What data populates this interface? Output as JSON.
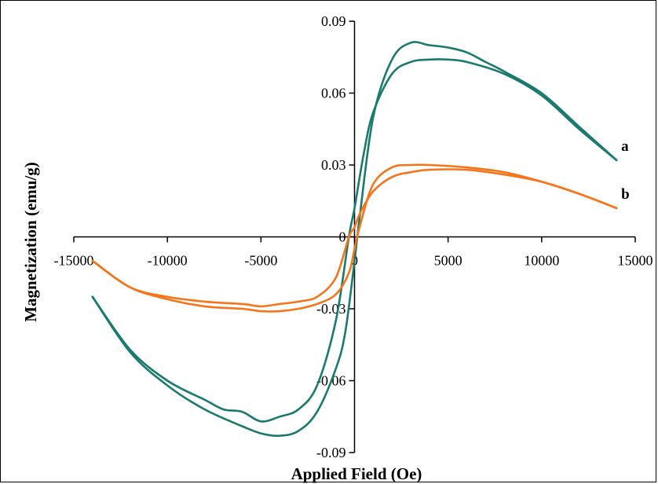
{
  "chart_data": {
    "type": "line",
    "xlabel": "Applied Field (Oe)",
    "ylabel": "Magnetization  (emu/g)",
    "xlim": [
      -15000,
      15000
    ],
    "ylim": [
      -0.09,
      0.09
    ],
    "x_ticks": [
      -15000,
      -10000,
      -5000,
      0,
      5000,
      10000,
      15000
    ],
    "x_tick_labels": [
      "-15000",
      "-10000",
      "-5000",
      "0",
      "5000",
      "10000",
      "15000"
    ],
    "y_ticks": [
      0.09,
      0.06,
      0.03,
      0,
      -0.03,
      -0.06,
      -0.09
    ],
    "y_tick_labels": [
      "0.09",
      "0.06",
      "0.03",
      "0",
      "-0.03",
      "-0.06",
      "-0.09"
    ],
    "grid": false,
    "legend": "none",
    "series": [
      {
        "label": "a",
        "color": "#1a7a6e",
        "upper_branch": [
          [
            14000,
            0.032
          ],
          [
            12000,
            0.045
          ],
          [
            10000,
            0.059
          ],
          [
            8000,
            0.068
          ],
          [
            6000,
            0.073
          ],
          [
            5000,
            0.074
          ],
          [
            4000,
            0.074
          ],
          [
            3000,
            0.073
          ],
          [
            2000,
            0.068
          ],
          [
            1000,
            0.052
          ],
          [
            500,
            0.035
          ],
          [
            0,
            0.012
          ],
          [
            -300,
            0.0
          ],
          [
            -1000,
            -0.035
          ],
          [
            -2000,
            -0.062
          ],
          [
            -3000,
            -0.072
          ],
          [
            -4000,
            -0.075
          ],
          [
            -5000,
            -0.077
          ],
          [
            -6000,
            -0.073
          ],
          [
            -7000,
            -0.072
          ],
          [
            -8000,
            -0.068
          ],
          [
            -10000,
            -0.06
          ],
          [
            -12000,
            -0.047
          ],
          [
            -14000,
            -0.025
          ]
        ],
        "lower_branch": [
          [
            -14000,
            -0.025
          ],
          [
            -12000,
            -0.048
          ],
          [
            -10000,
            -0.062
          ],
          [
            -8000,
            -0.072
          ],
          [
            -6000,
            -0.079
          ],
          [
            -5000,
            -0.082
          ],
          [
            -4000,
            -0.083
          ],
          [
            -3000,
            -0.081
          ],
          [
            -2000,
            -0.073
          ],
          [
            -1000,
            -0.055
          ],
          [
            -500,
            -0.04
          ],
          [
            0,
            -0.01
          ],
          [
            300,
            0.01
          ],
          [
            1000,
            0.05
          ],
          [
            2000,
            0.074
          ],
          [
            3000,
            0.081
          ],
          [
            4000,
            0.08
          ],
          [
            5000,
            0.079
          ],
          [
            6000,
            0.077
          ],
          [
            7000,
            0.073
          ],
          [
            8000,
            0.069
          ],
          [
            10000,
            0.06
          ],
          [
            12000,
            0.046
          ],
          [
            14000,
            0.032
          ]
        ]
      },
      {
        "label": "b",
        "color": "#f5761a",
        "upper_branch": [
          [
            14000,
            0.012
          ],
          [
            12000,
            0.018
          ],
          [
            10000,
            0.023
          ],
          [
            8000,
            0.026
          ],
          [
            6000,
            0.028
          ],
          [
            4000,
            0.028
          ],
          [
            3000,
            0.027
          ],
          [
            2000,
            0.025
          ],
          [
            1000,
            0.019
          ],
          [
            300,
            0.01
          ],
          [
            0,
            0.004
          ],
          [
            -300,
            0.0
          ],
          [
            -1000,
            -0.017
          ],
          [
            -2000,
            -0.025
          ],
          [
            -3000,
            -0.027
          ],
          [
            -4000,
            -0.028
          ],
          [
            -5000,
            -0.029
          ],
          [
            -6000,
            -0.028
          ],
          [
            -8000,
            -0.027
          ],
          [
            -10000,
            -0.025
          ],
          [
            -12000,
            -0.021
          ],
          [
            -14000,
            -0.01
          ]
        ],
        "lower_branch": [
          [
            -14000,
            -0.01
          ],
          [
            -12000,
            -0.021
          ],
          [
            -10000,
            -0.026
          ],
          [
            -8000,
            -0.029
          ],
          [
            -6000,
            -0.03
          ],
          [
            -5000,
            -0.031
          ],
          [
            -4000,
            -0.031
          ],
          [
            -3000,
            -0.03
          ],
          [
            -2000,
            -0.028
          ],
          [
            -1000,
            -0.024
          ],
          [
            -300,
            -0.015
          ],
          [
            0,
            -0.005
          ],
          [
            300,
            0.005
          ],
          [
            1000,
            0.022
          ],
          [
            2000,
            0.029
          ],
          [
            3000,
            0.03
          ],
          [
            4000,
            0.03
          ],
          [
            6000,
            0.029
          ],
          [
            8000,
            0.027
          ],
          [
            10000,
            0.023
          ],
          [
            12000,
            0.018
          ],
          [
            14000,
            0.012
          ]
        ]
      }
    ]
  }
}
